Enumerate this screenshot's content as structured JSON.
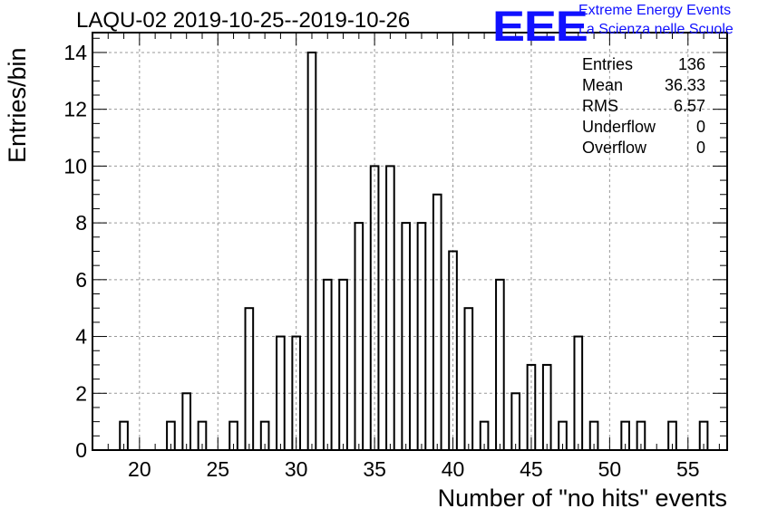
{
  "header": {
    "title": "LAQU-02 2019-10-25--2019-10-26",
    "logo_text": "EEE",
    "logo_line1": "Extreme Energy Events",
    "logo_line2": "La Scienza nelle Scuole"
  },
  "stats": [
    {
      "label": "Entries",
      "value": "136"
    },
    {
      "label": "Mean",
      "value": "36.33"
    },
    {
      "label": "RMS",
      "value": "6.57"
    },
    {
      "label": "Underflow",
      "value": "0"
    },
    {
      "label": "Overflow",
      "value": "0"
    }
  ],
  "colors": {
    "accent": "#1010ff",
    "bars": "#000000",
    "grid": "#999999"
  },
  "chart_data": {
    "type": "bar",
    "xlabel": "Number of \"no hits\" events",
    "ylabel": "Entries/bin",
    "xlim": [
      17,
      57.5
    ],
    "ylim": [
      0,
      14.7
    ],
    "xticks": [
      20,
      25,
      30,
      35,
      40,
      45,
      50,
      55
    ],
    "yticks": [
      0,
      2,
      4,
      6,
      8,
      10,
      12,
      14
    ],
    "grid": true,
    "bin_width": 1,
    "bar_fraction": 0.5,
    "x": [
      19,
      22,
      23,
      24,
      26,
      27,
      28,
      29,
      30,
      31,
      32,
      33,
      34,
      35,
      36,
      37,
      38,
      39,
      40,
      41,
      42,
      43,
      44,
      45,
      46,
      47,
      48,
      49,
      51,
      52,
      54,
      56
    ],
    "values": [
      1,
      1,
      2,
      1,
      1,
      5,
      1,
      4,
      4,
      14,
      6,
      6,
      8,
      10,
      10,
      8,
      8,
      9,
      7,
      5,
      1,
      6,
      2,
      3,
      3,
      1,
      4,
      1,
      1,
      1,
      1,
      1
    ]
  }
}
